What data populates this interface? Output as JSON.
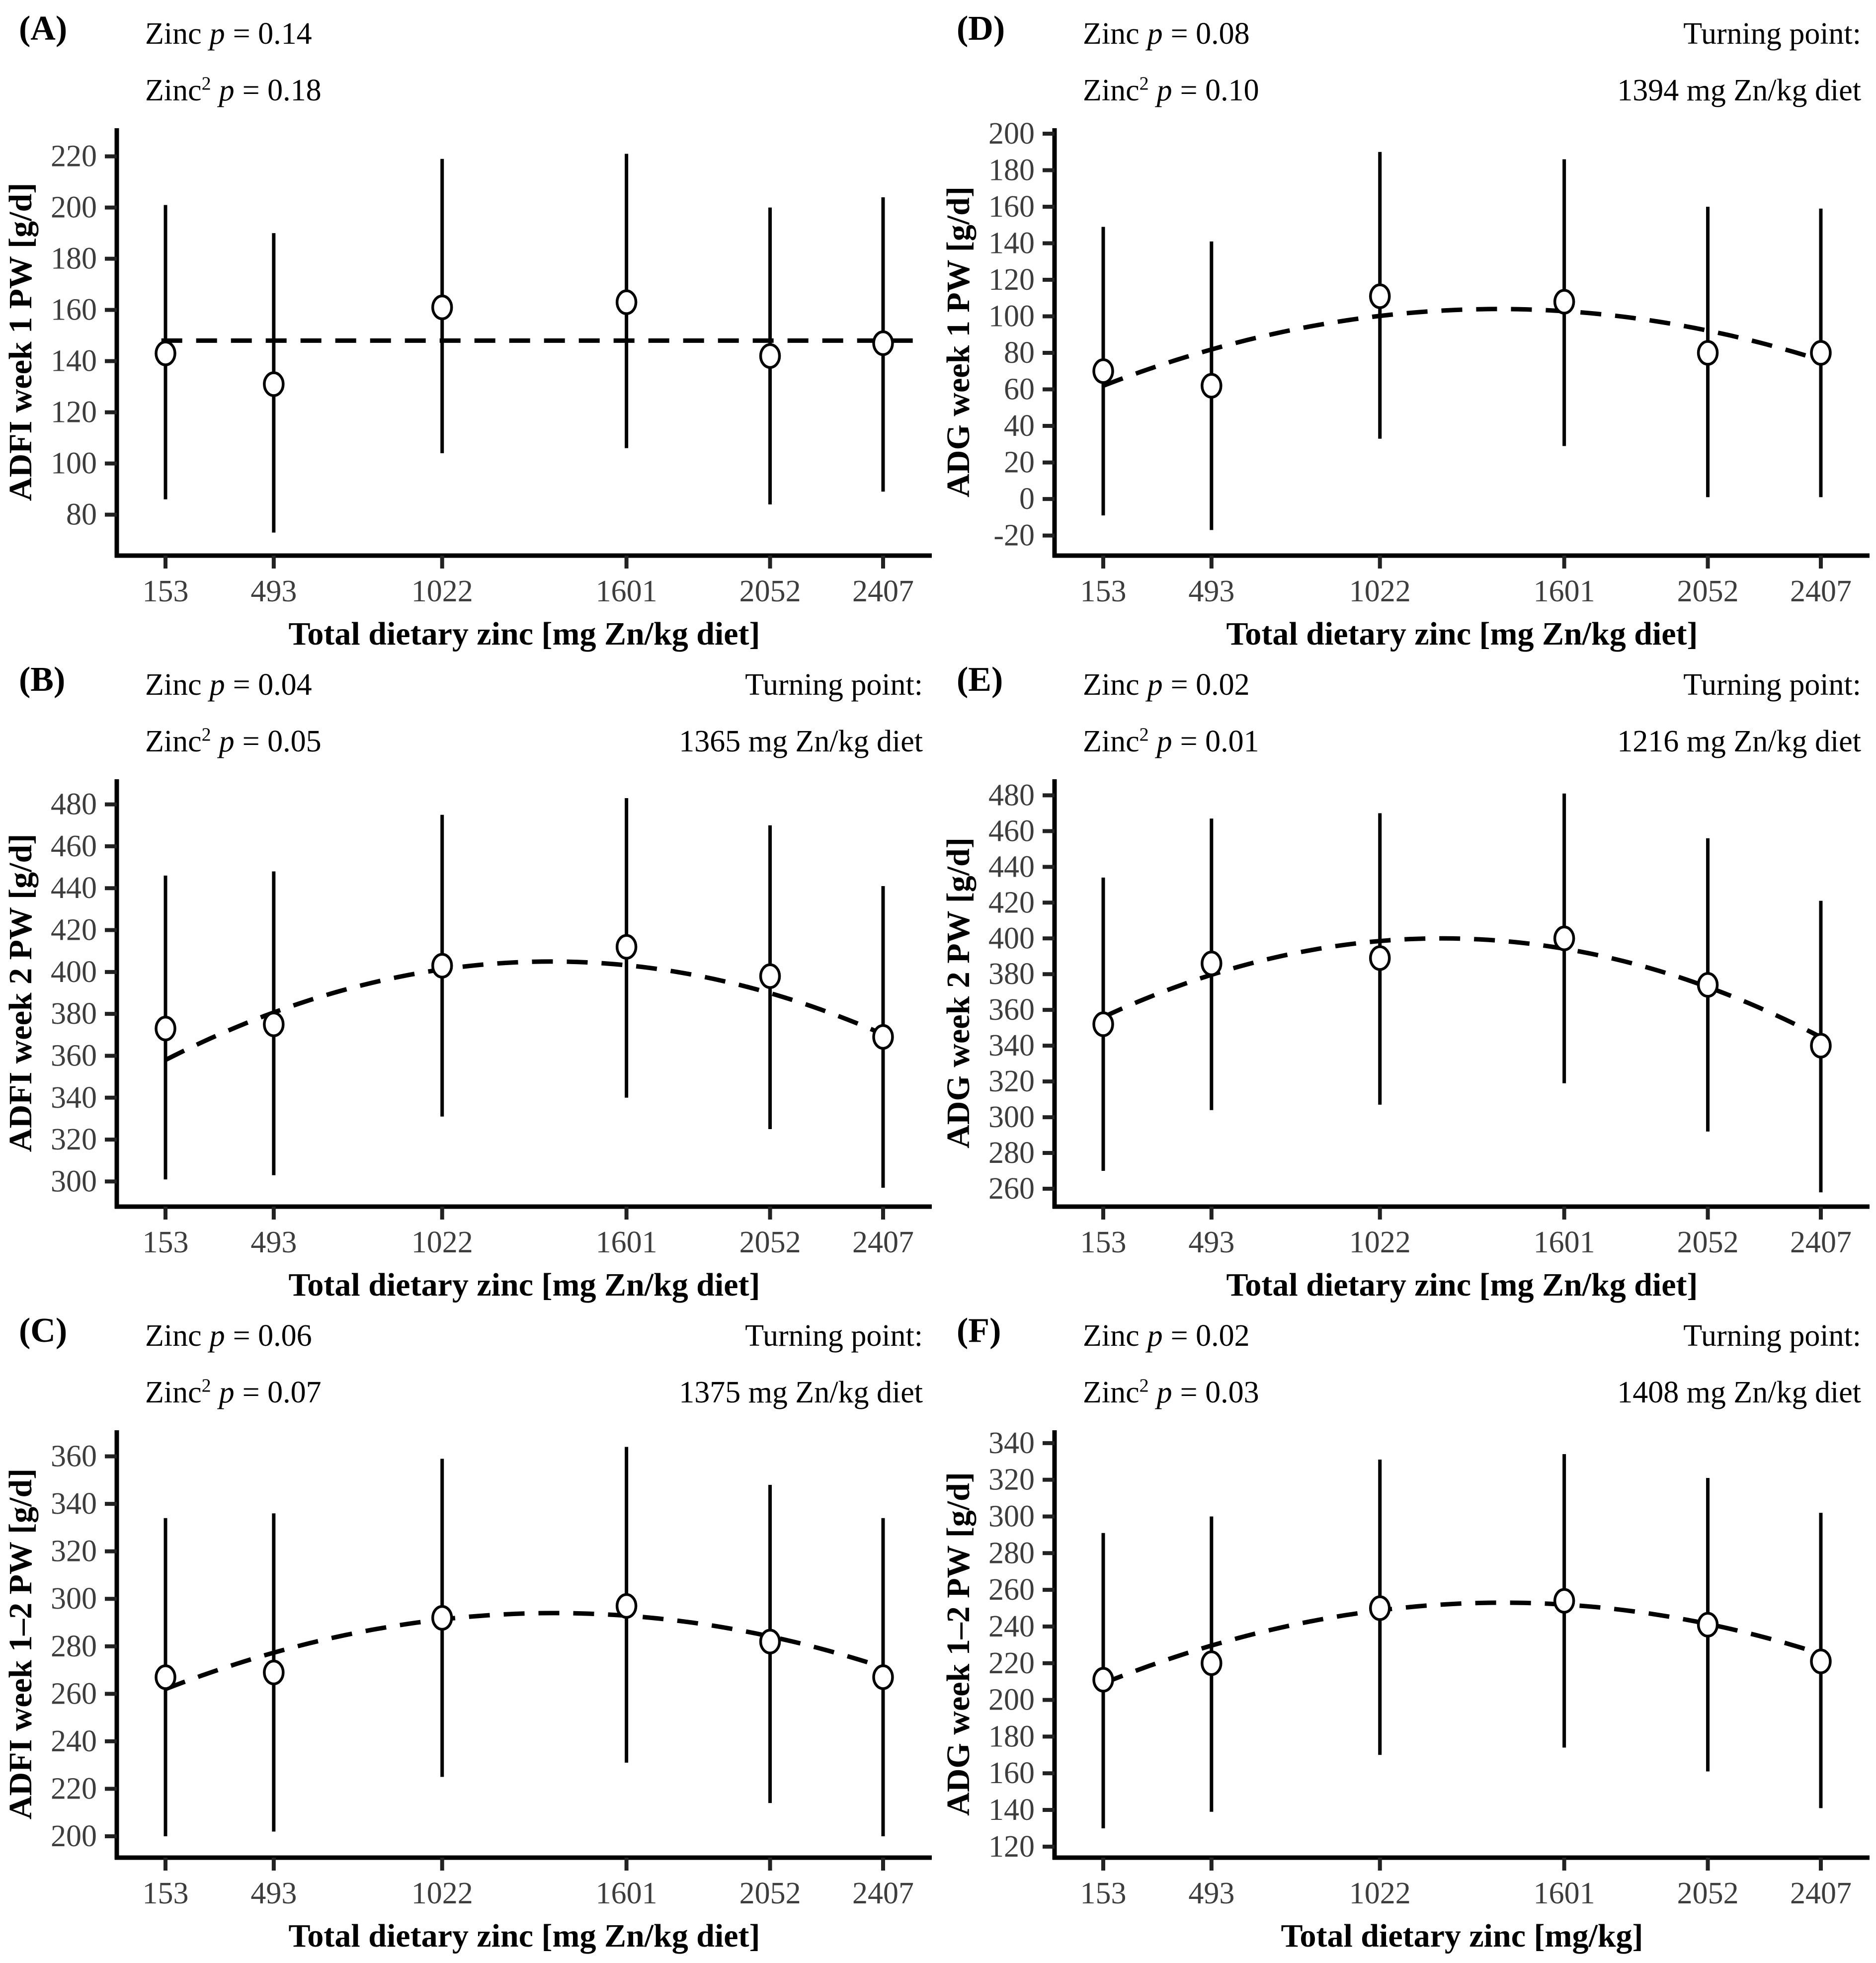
{
  "chart_data": [
    {
      "type": "scatter",
      "letter": "(A)",
      "stats1": {
        "prefix": "Zinc",
        "sup": "",
        "p": "p",
        "rest": "= 0.14"
      },
      "stats2": {
        "prefix": "Zinc",
        "sup": "2",
        "p": "p",
        "rest": "= 0.18"
      },
      "turning_label": "",
      "turning_value": "",
      "ylabel": "ADFI week 1 PW [g/d]",
      "xlabel": "Total dietary zinc [mg Zn/kg diet]",
      "x": [
        153,
        493,
        1022,
        1601,
        2052,
        2407
      ],
      "mean": [
        143,
        131,
        161,
        163,
        142,
        147
      ],
      "lower": [
        86,
        73,
        104,
        106,
        84,
        89
      ],
      "upper": [
        201,
        190,
        219,
        221,
        200,
        204
      ],
      "yticks": [
        80,
        100,
        120,
        140,
        160,
        180,
        200,
        220
      ],
      "ylim": [
        64,
        231
      ],
      "fit": {
        "type": "flat",
        "y": 148,
        "x_start": 140,
        "x_end": 2520
      },
      "legend": "none",
      "grid": "off"
    },
    {
      "type": "scatter",
      "letter": "(D)",
      "stats1": {
        "prefix": "Zinc",
        "sup": "",
        "p": "p",
        "rest": "= 0.08"
      },
      "stats2": {
        "prefix": "Zinc",
        "sup": "2",
        "p": "p",
        "rest": "= 0.10"
      },
      "turning_label": "Turning point:",
      "turning_value": "1394 mg Zn/kg diet",
      "ylabel": "ADG week 1 PW [g/d]",
      "xlabel": "Total dietary zinc [mg Zn/kg diet]",
      "x": [
        153,
        493,
        1022,
        1601,
        2052,
        2407
      ],
      "mean": [
        70,
        62,
        111,
        108,
        80,
        80
      ],
      "lower": [
        -9,
        -17,
        33,
        29,
        1,
        1
      ],
      "upper": [
        149,
        141,
        190,
        186,
        160,
        159
      ],
      "yticks": [
        -20,
        0,
        20,
        40,
        60,
        80,
        100,
        120,
        140,
        160,
        180,
        200
      ],
      "ylim": [
        -31,
        203
      ],
      "fit": {
        "type": "parabola",
        "x_peak": 1394,
        "y_peak": 104,
        "y_left": 62,
        "x_start": 153,
        "x_end": 2407
      },
      "legend": "none",
      "grid": "off"
    },
    {
      "type": "scatter",
      "letter": "(B)",
      "stats1": {
        "prefix": "Zinc",
        "sup": "",
        "p": "p",
        "rest": "= 0.04"
      },
      "stats2": {
        "prefix": "Zinc",
        "sup": "2",
        "p": "p",
        "rest": "= 0.05"
      },
      "turning_label": "Turning point:",
      "turning_value": "1365 mg Zn/kg diet",
      "ylabel": "ADFI week 2 PW [g/d]",
      "xlabel": "Total dietary zinc [mg Zn/kg diet]",
      "x": [
        153,
        493,
        1022,
        1601,
        2052,
        2407
      ],
      "mean": [
        373,
        375,
        403,
        412,
        398,
        369
      ],
      "lower": [
        301,
        303,
        331,
        340,
        325,
        297
      ],
      "upper": [
        446,
        448,
        475,
        483,
        470,
        441
      ],
      "yticks": [
        300,
        320,
        340,
        360,
        380,
        400,
        420,
        440,
        460,
        480
      ],
      "ylim": [
        288,
        492
      ],
      "fit": {
        "type": "parabola",
        "x_peak": 1365,
        "y_peak": 405,
        "y_left": 358,
        "x_start": 153,
        "x_end": 2407
      },
      "legend": "none",
      "grid": "off"
    },
    {
      "type": "scatter",
      "letter": "(E)",
      "stats1": {
        "prefix": "Zinc",
        "sup": "",
        "p": "p",
        "rest": "= 0.02"
      },
      "stats2": {
        "prefix": "Zinc",
        "sup": "2",
        "p": "p",
        "rest": "= 0.01"
      },
      "turning_label": "Turning point:",
      "turning_value": "1216 mg Zn/kg diet",
      "ylabel": "ADG week 2 PW [g/d]",
      "xlabel": "Total dietary zinc [mg Zn/kg diet]",
      "x": [
        153,
        493,
        1022,
        1601,
        2052,
        2407
      ],
      "mean": [
        352,
        386,
        389,
        400,
        374,
        340
      ],
      "lower": [
        270,
        304,
        307,
        319,
        292,
        258
      ],
      "upper": [
        434,
        467,
        470,
        481,
        456,
        421
      ],
      "yticks": [
        260,
        280,
        300,
        320,
        340,
        360,
        380,
        400,
        420,
        440,
        460,
        480
      ],
      "ylim": [
        250,
        489
      ],
      "fit": {
        "type": "parabola",
        "x_peak": 1216,
        "y_peak": 400,
        "y_left": 356,
        "x_start": 153,
        "x_end": 2407
      },
      "legend": "none",
      "grid": "off"
    },
    {
      "type": "scatter",
      "letter": "(C)",
      "stats1": {
        "prefix": "Zinc",
        "sup": "",
        "p": "p",
        "rest": "= 0.06"
      },
      "stats2": {
        "prefix": "Zinc",
        "sup": "2",
        "p": "p",
        "rest": "= 0.07"
      },
      "turning_label": "Turning point:",
      "turning_value": "1375 mg Zn/kg diet",
      "ylabel": "ADFI week 1–2 PW [g/d]",
      "xlabel": "Total dietary zinc [mg Zn/kg diet]",
      "x": [
        153,
        493,
        1022,
        1601,
        2052,
        2407
      ],
      "mean": [
        267,
        269,
        292,
        297,
        282,
        267
      ],
      "lower": [
        200,
        202,
        225,
        231,
        214,
        200
      ],
      "upper": [
        334,
        336,
        359,
        364,
        348,
        334
      ],
      "yticks": [
        200,
        220,
        240,
        260,
        280,
        300,
        320,
        340,
        360
      ],
      "ylim": [
        191,
        371
      ],
      "fit": {
        "type": "parabola",
        "x_peak": 1375,
        "y_peak": 294,
        "y_left": 262,
        "x_start": 153,
        "x_end": 2407
      },
      "legend": "none",
      "grid": "off"
    },
    {
      "type": "scatter",
      "letter": "(F)",
      "stats1": {
        "prefix": "Zinc",
        "sup": "",
        "p": "p",
        "rest": "= 0.02"
      },
      "stats2": {
        "prefix": "Zinc",
        "sup": "2",
        "p": "p",
        "rest": "= 0.03"
      },
      "turning_label": "Turning point:",
      "turning_value": "1408 mg Zn/kg diet",
      "ylabel": "ADG week 1–2 PW [g/d]",
      "xlabel": "Total dietary zinc [mg/kg]",
      "x": [
        153,
        493,
        1022,
        1601,
        2052,
        2407
      ],
      "mean": [
        211,
        220,
        250,
        254,
        241,
        221
      ],
      "lower": [
        130,
        139,
        170,
        174,
        161,
        141
      ],
      "upper": [
        291,
        300,
        331,
        334,
        321,
        302
      ],
      "yticks": [
        120,
        140,
        160,
        180,
        200,
        220,
        240,
        260,
        280,
        300,
        320,
        340
      ],
      "ylim": [
        114,
        347
      ],
      "fit": {
        "type": "parabola",
        "x_peak": 1408,
        "y_peak": 253,
        "y_left": 209,
        "x_start": 153,
        "x_end": 2407
      },
      "legend": "none",
      "grid": "off"
    }
  ],
  "style": {
    "axis_color": "#000000",
    "tick_label_color": "#3d3d3d",
    "point_fill": "#ffffff",
    "background": "#ffffff"
  }
}
